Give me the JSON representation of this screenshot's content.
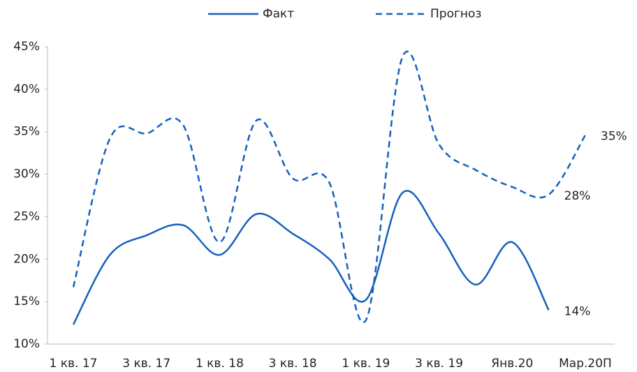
{
  "chart_data": {
    "type": "line",
    "categories": [
      "1 кв. 17",
      null,
      "3 кв. 17",
      null,
      "1 кв. 18",
      null,
      "3 кв. 18",
      null,
      "1 кв. 19",
      null,
      "3 кв. 19",
      null,
      "Янв.20",
      null,
      "Мар.20П"
    ],
    "series": [
      {
        "name": "Факт",
        "color": "#1560bd",
        "dashed": false,
        "values": [
          12.3,
          20.5,
          22.8,
          24,
          20.5,
          25.3,
          23,
          20,
          15.2,
          27.8,
          23,
          17,
          22,
          14,
          null
        ],
        "value_labels": [
          null,
          null,
          null,
          null,
          null,
          null,
          null,
          null,
          null,
          null,
          null,
          null,
          null,
          "14%",
          null
        ]
      },
      {
        "name": "Прогноз",
        "color": "#1560bd",
        "dashed": true,
        "values": [
          16.7,
          34.2,
          34.8,
          35.8,
          22,
          36.3,
          29.5,
          29,
          12.8,
          43.8,
          33.5,
          30.5,
          28.5,
          27.6,
          34.6
        ],
        "value_labels": [
          null,
          null,
          null,
          null,
          null,
          null,
          null,
          null,
          null,
          null,
          null,
          null,
          null,
          "28%",
          "35%"
        ]
      }
    ],
    "ylim": [
      10,
      45
    ],
    "yticks": [
      {
        "value": 10,
        "label": "10%"
      },
      {
        "value": 15,
        "label": "15%"
      },
      {
        "value": 20,
        "label": "20%"
      },
      {
        "value": 25,
        "label": "25%"
      },
      {
        "value": 30,
        "label": "30%"
      },
      {
        "value": 35,
        "label": "35%"
      },
      {
        "value": 40,
        "label": "40%"
      },
      {
        "value": 45,
        "label": "45%"
      }
    ],
    "grid": false,
    "legend": "top"
  }
}
